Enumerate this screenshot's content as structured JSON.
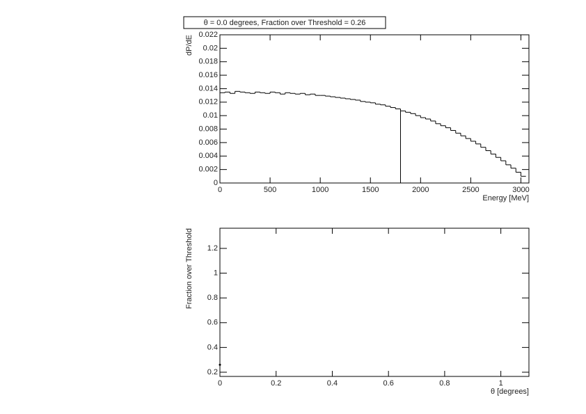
{
  "chart_data": [
    {
      "type": "histogram",
      "title": "θ = 0.0 degrees, Fraction over Threshold = 0.26",
      "x_label": "Energy [MeV]",
      "y_label": "dP/dE",
      "bins": [
        0,
        50,
        100,
        150,
        200,
        250,
        300,
        350,
        400,
        450,
        500,
        550,
        600,
        650,
        700,
        750,
        800,
        850,
        900,
        950,
        1000,
        1050,
        1100,
        1150,
        1200,
        1250,
        1300,
        1350,
        1400,
        1450,
        1500,
        1550,
        1600,
        1650,
        1700,
        1750,
        1800,
        1850,
        1900,
        1950,
        2000,
        2050,
        2100,
        2150,
        2200,
        2250,
        2300,
        2350,
        2400,
        2450,
        2500,
        2550,
        2600,
        2650,
        2700,
        2750,
        2800,
        2850,
        2900,
        2950,
        3000,
        3050
      ],
      "values": [
        0.0134,
        0.0135,
        0.0133,
        0.0136,
        0.0135,
        0.0134,
        0.0133,
        0.0135,
        0.0134,
        0.0133,
        0.0135,
        0.0134,
        0.0132,
        0.0134,
        0.0133,
        0.0132,
        0.0133,
        0.0131,
        0.0132,
        0.013,
        0.013,
        0.0129,
        0.0128,
        0.0127,
        0.0126,
        0.0125,
        0.0124,
        0.0123,
        0.0121,
        0.012,
        0.0119,
        0.0117,
        0.0116,
        0.0114,
        0.0112,
        0.011,
        0.0107,
        0.0105,
        0.0103,
        0.01,
        0.0097,
        0.0095,
        0.0092,
        0.0088,
        0.0085,
        0.0082,
        0.0078,
        0.0074,
        0.007,
        0.0066,
        0.0062,
        0.0058,
        0.0053,
        0.0048,
        0.0043,
        0.0038,
        0.0033,
        0.0027,
        0.0022,
        0.0016,
        0.001
      ],
      "threshold": 1800,
      "color": "#000000",
      "xlim": [
        0,
        3080
      ],
      "xticks": [
        0,
        500,
        1000,
        1500,
        2000,
        2500,
        3000
      ],
      "ylim": [
        0,
        0.022
      ],
      "yticks": [
        0,
        0.002,
        0.004,
        0.006,
        0.008,
        0.01,
        0.012,
        0.014,
        0.016,
        0.018,
        0.02,
        0.022
      ]
    },
    {
      "type": "scatter",
      "x_label": "θ [degrees]",
      "y_label": "Fraction over Threshold",
      "x": [
        0
      ],
      "values": [
        0.26
      ],
      "color": "#000000",
      "xlim": [
        0,
        1.1
      ],
      "xticks": [
        0,
        0.2,
        0.4,
        0.6,
        0.8,
        1
      ],
      "ylim": [
        0.166,
        1.363
      ],
      "yticks": [
        0.2,
        0.4,
        0.6,
        0.8,
        1,
        1.2
      ]
    }
  ]
}
